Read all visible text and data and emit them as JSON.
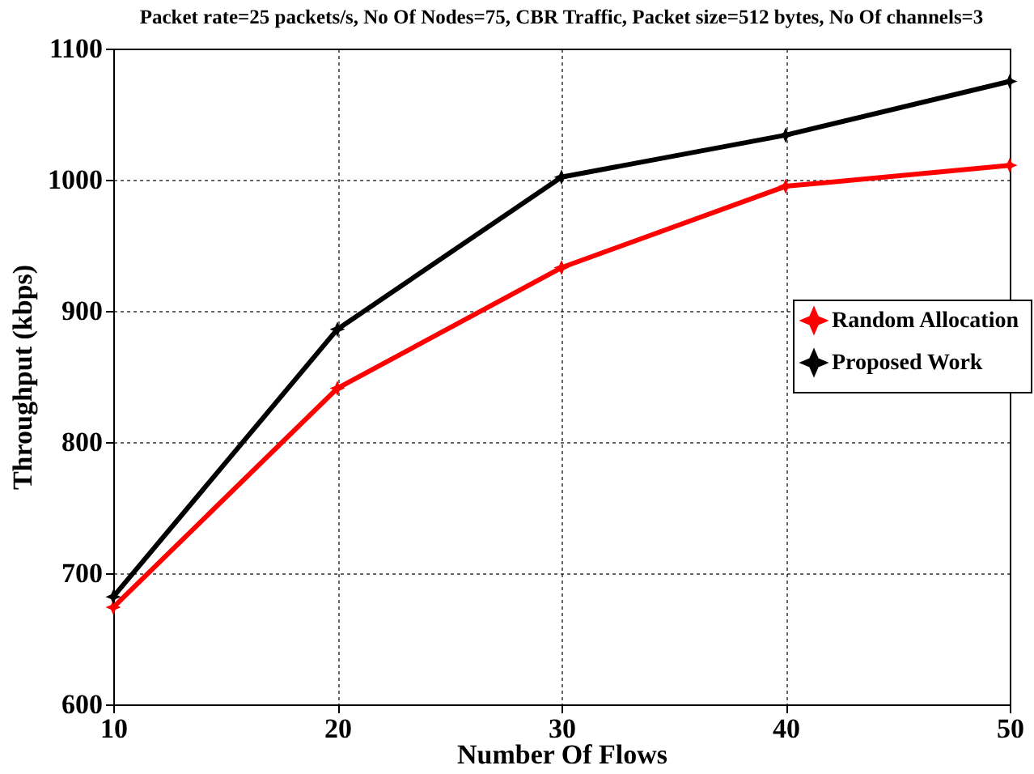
{
  "chart_data": {
    "type": "line",
    "title": "Packet rate=25 packets/s, No Of Nodes=75, CBR Traffic, Packet size=512 bytes, No Of  channels=3",
    "xlabel": "Number Of Flows",
    "ylabel": "Throughput (kbps)",
    "x": [
      10,
      20,
      30,
      40,
      50
    ],
    "series": [
      {
        "name": "Random Allocation",
        "color": "#ff0000",
        "values": [
          674,
          841,
          933,
          995,
          1011
        ]
      },
      {
        "name": "Proposed Work",
        "color": "#000000",
        "values": [
          682,
          886,
          1002,
          1034,
          1075
        ]
      }
    ],
    "xlim": [
      10,
      50
    ],
    "xticks": [
      10,
      20,
      30,
      40,
      50
    ],
    "ylim": [
      600,
      1100
    ],
    "yticks": [
      600,
      700,
      800,
      900,
      1000,
      1100
    ],
    "grid": true,
    "legend": "right",
    "marker": "star",
    "line_style": "solid"
  }
}
